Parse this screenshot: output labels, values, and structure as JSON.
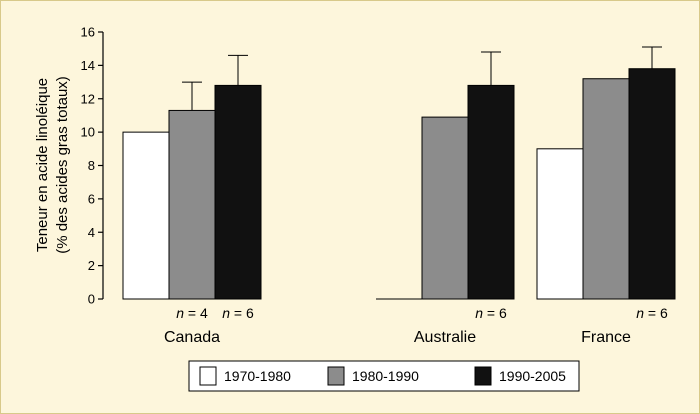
{
  "chart_data": {
    "type": "bar",
    "title": "",
    "ylabel_line1": "Teneur en acide linoléique",
    "ylabel_line2": "(% des acides gras totaux)",
    "ylim": [
      0,
      16
    ],
    "yticks": [
      0,
      2,
      4,
      6,
      8,
      10,
      12,
      14,
      16
    ],
    "categories": [
      "Canada",
      "Australie",
      "France"
    ],
    "series": [
      {
        "name": "1970-1980",
        "color": "#ffffff",
        "values": [
          10.0,
          null,
          9.0
        ],
        "errors": [
          null,
          null,
          null
        ]
      },
      {
        "name": "1980-1990",
        "color": "#8c8c8c",
        "values": [
          11.3,
          10.9,
          13.2
        ],
        "errors": [
          1.7,
          null,
          null
        ]
      },
      {
        "name": "1990-2005",
        "color": "#111111",
        "values": [
          12.8,
          12.8,
          13.8
        ],
        "errors": [
          1.8,
          2.0,
          1.3
        ]
      }
    ],
    "n_labels": [
      {
        "category": "Canada",
        "series": "1980-1990",
        "text": "n = 4"
      },
      {
        "category": "Canada",
        "series": "1990-2005",
        "text": "n = 6"
      },
      {
        "category": "Australie",
        "series": "1990-2005",
        "text": "n = 6"
      },
      {
        "category": "France",
        "series": "1990-2005",
        "text": "n = 6"
      }
    ],
    "legend_position": "bottom"
  }
}
